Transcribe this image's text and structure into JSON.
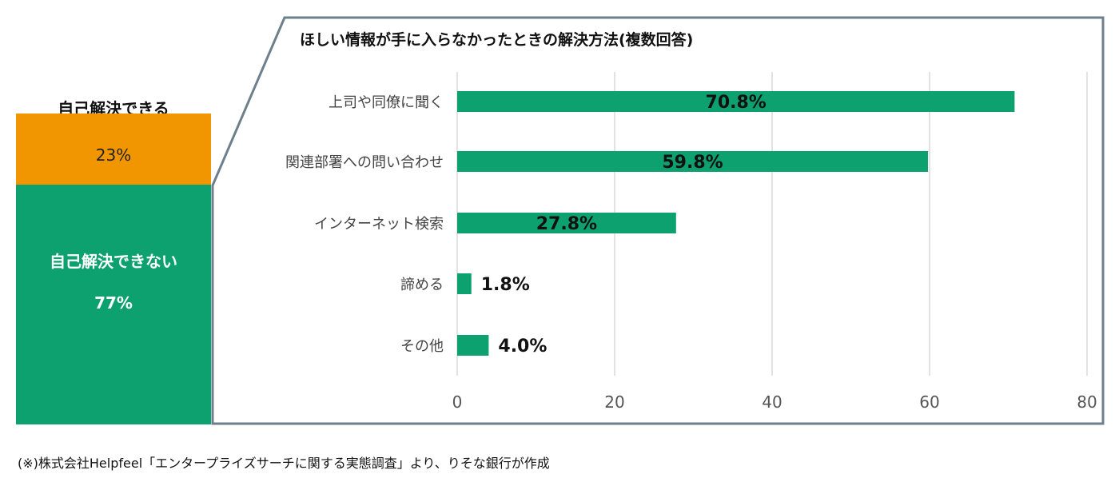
{
  "stack": {
    "top_label": "自己解決できる",
    "segments": [
      {
        "label": "",
        "value_text": "23%",
        "color": "#f29600"
      },
      {
        "label": "自己解決できない",
        "value_text": "77%",
        "color": "#0ea170"
      }
    ]
  },
  "chart_data": {
    "type": "bar",
    "orientation": "horizontal",
    "title": "ほしい情報が手に入らなかったときの解決方法(複数回答)",
    "categories": [
      "上司や同僚に聞く",
      "関連部署への問い合わせ",
      "インターネット検索",
      "諦める",
      "その他"
    ],
    "values": [
      70.8,
      59.8,
      27.8,
      1.8,
      4.0
    ],
    "data_labels": [
      "70.8%",
      "59.8%",
      "27.8%",
      "1.8%",
      "4.0%"
    ],
    "xlim": [
      0,
      80
    ],
    "xticks": [
      0,
      20,
      40,
      60,
      80
    ],
    "grid": true,
    "bar_color": "#0ea170",
    "frame_color": "#6e7f8c",
    "xlabel": "",
    "ylabel": ""
  },
  "footnote": "(※)株式会社Helpfeel「エンタープライズサーチに関する実態調査」より、りそな銀行が作成"
}
